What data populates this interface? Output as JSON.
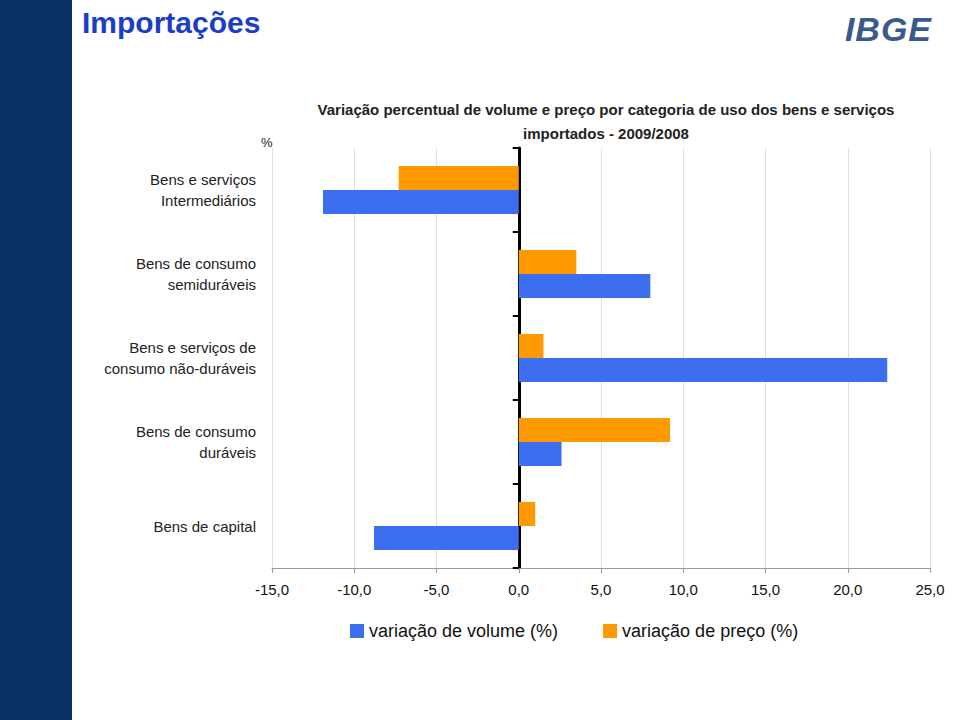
{
  "slide": {
    "title": "Importações",
    "logo": "IBGE"
  },
  "chart_data": {
    "type": "bar",
    "orientation": "horizontal",
    "title": "Variação percentual de volume e preço por categoria de uso dos bens e serviços\nimportados - 2009/2008",
    "xlabel": "%",
    "categories": [
      "Bens e serviços\nIntermediários",
      "Bens de consumo\nsemiduráveis",
      "Bens e serviços de\nconsumo não-duráveis",
      "Bens de consumo\nduráveis",
      "Bens de capital"
    ],
    "series": [
      {
        "name": "variação de volume (%)",
        "color": "#3d6ef0",
        "values": [
          -11.9,
          8.0,
          22.4,
          2.6,
          -8.8
        ]
      },
      {
        "name": "variação de preço (%)",
        "color": "#ff9900",
        "values": [
          -7.3,
          3.5,
          1.5,
          9.2,
          1.0
        ]
      }
    ],
    "xlim": [
      -15,
      25
    ],
    "xticks": [
      {
        "value": -15,
        "label": "-15,0"
      },
      {
        "value": -10,
        "label": "-10,0"
      },
      {
        "value": -5,
        "label": "-5,0"
      },
      {
        "value": 0,
        "label": "0,0"
      },
      {
        "value": 5,
        "label": "5,0"
      },
      {
        "value": 10,
        "label": "10,0"
      },
      {
        "value": 15,
        "label": "15,0"
      },
      {
        "value": 20,
        "label": "20,0"
      },
      {
        "value": 25,
        "label": "25,0"
      }
    ],
    "grid": true,
    "legend": "bottom",
    "data_labels": false
  }
}
